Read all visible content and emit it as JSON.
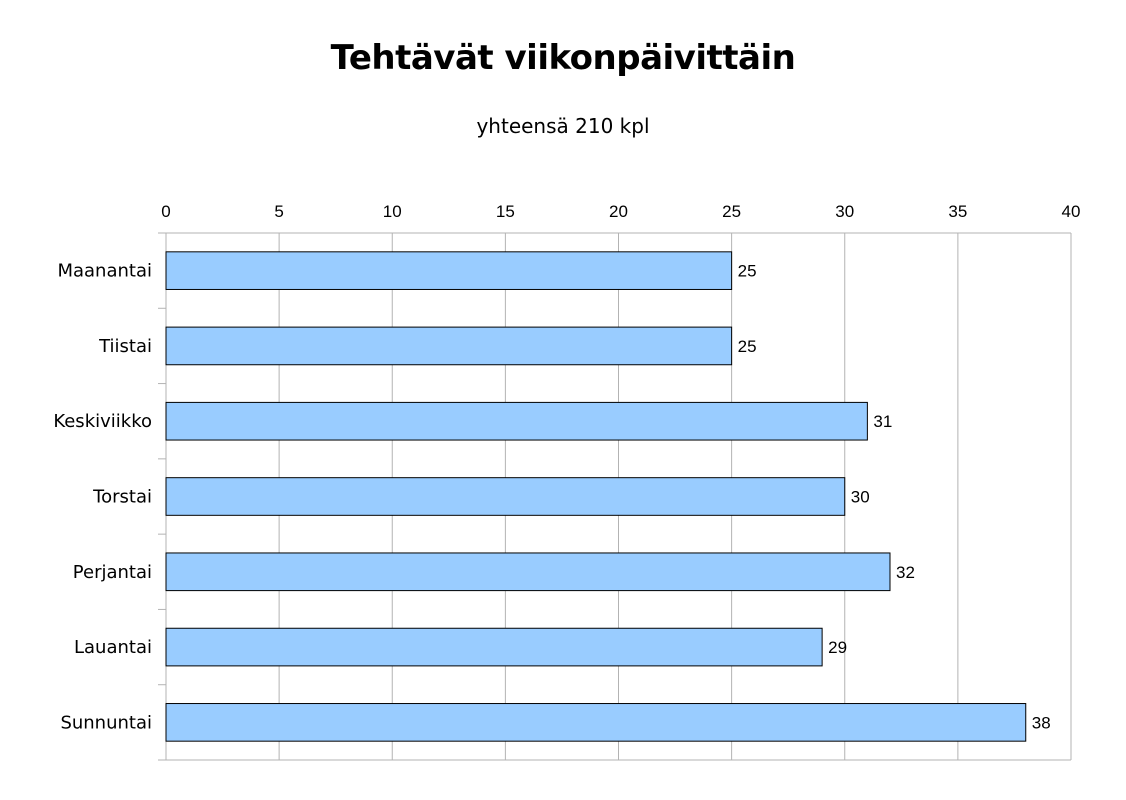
{
  "chart_data": {
    "type": "bar",
    "orientation": "horizontal",
    "title": "Tehtävät viikonpäivittäin",
    "subtitle": "yhteensä 210 kpl",
    "categories": [
      "Maanantai",
      "Tiistai",
      "Keskiviikko",
      "Torstai",
      "Perjantai",
      "Lauantai",
      "Sunnuntai"
    ],
    "values": [
      25,
      25,
      31,
      30,
      32,
      29,
      38
    ],
    "xlim": [
      0,
      40
    ],
    "xticks": [
      0,
      5,
      10,
      15,
      20,
      25,
      30,
      35,
      40
    ],
    "x_axis_position": "top",
    "grid": true,
    "data_labels": true,
    "bar_color": "#99ccff",
    "bar_border_color": "#000000",
    "grid_color": "#b3b3b3"
  }
}
